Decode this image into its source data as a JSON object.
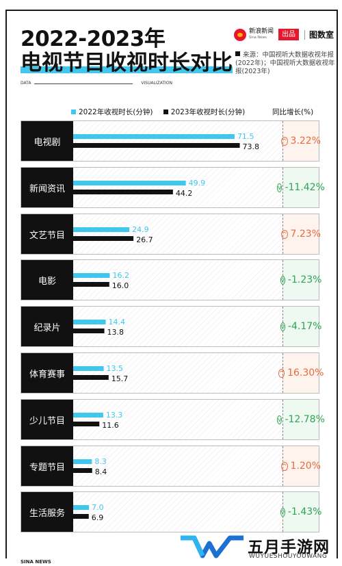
{
  "title_line1": "2022-2023年",
  "title_line2": "电视节目收视时长对比",
  "brand": {
    "sina": "新浪新闻",
    "sina_en": "Sina News",
    "produced": "出品",
    "tu": "图数室"
  },
  "source": "来源：中国视听大数据收视年报(2022年)；中国视听大数据收视年报(2023年)",
  "data_left": "DATA",
  "data_right": "VISUALIZATION",
  "legend": {
    "s2022": "2022年收视时长(分钟)",
    "s2023": "2023年收视时长(分钟)",
    "growth": "同比增长(%)"
  },
  "footer": "SINA NEWS",
  "watermark": {
    "cn": "五月手游网",
    "en": "WUYUESHOUYOUWANG"
  },
  "colors": {
    "s2022": "#3fc7ee",
    "s2023": "#111111",
    "up": "#e8693c",
    "down": "#2da453"
  },
  "chart_data": {
    "type": "bar",
    "orientation": "horizontal",
    "categories": [
      "电视剧",
      "新闻资讯",
      "文艺节目",
      "电影",
      "纪录片",
      "体育赛事",
      "少儿节目",
      "专题节目",
      "生活服务"
    ],
    "series": [
      {
        "name": "2022年收视时长(分钟)",
        "values": [
          71.5,
          49.9,
          24.9,
          16.2,
          14.4,
          13.5,
          13.3,
          8.3,
          7.0
        ],
        "labels": [
          "71.5",
          "49.9",
          "24.9",
          "16.2",
          "14.4",
          "13.5",
          "13.3",
          "8.3",
          "7.0"
        ]
      },
      {
        "name": "2023年收视时长(分钟)",
        "values": [
          73.8,
          44.2,
          26.7,
          16.0,
          13.8,
          15.7,
          11.6,
          8.4,
          6.9
        ],
        "labels": [
          "73.8",
          "44.2",
          "26.7",
          "16.0",
          "13.8",
          "15.7",
          "11.6",
          "8.4",
          "6.9"
        ]
      }
    ],
    "growth": [
      {
        "text": "3.22%",
        "dir": "up"
      },
      {
        "text": "-11.42%",
        "dir": "down"
      },
      {
        "text": "7.23%",
        "dir": "up"
      },
      {
        "text": "-1.23%",
        "dir": "down"
      },
      {
        "text": "-4.17%",
        "dir": "down"
      },
      {
        "text": "16.30%",
        "dir": "up"
      },
      {
        "text": "-12.78%",
        "dir": "down"
      },
      {
        "text": "1.20%",
        "dir": "up"
      },
      {
        "text": "-1.43%",
        "dir": "down"
      }
    ],
    "xlim": [
      0,
      100
    ]
  }
}
